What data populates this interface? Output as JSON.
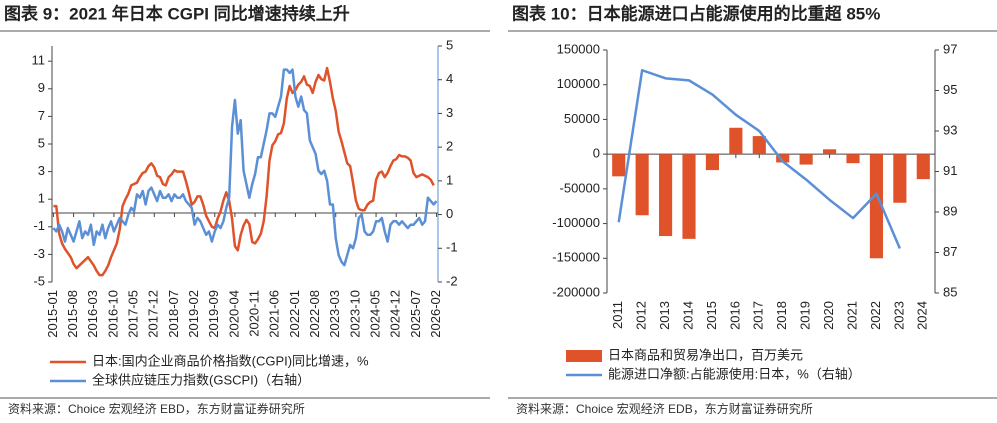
{
  "chart_data": [
    {
      "type": "line",
      "title": "图表 9：2021 年日本 CGPI 同比增速持续上升",
      "source": "资料来源：Choice 宏观经济 EBD，东方财富证券研究所",
      "categories": [
        "2015-01",
        null,
        null,
        null,
        null,
        null,
        null,
        "2015-08",
        null,
        null,
        null,
        null,
        null,
        null,
        "2016-03",
        null,
        null,
        null,
        null,
        null,
        null,
        "2016-10",
        null,
        null,
        null,
        null,
        null,
        null,
        "2017-05",
        null,
        null,
        null,
        null,
        null,
        null,
        "2017-12",
        null,
        null,
        null,
        null,
        null,
        null,
        "2018-07",
        null,
        null,
        null,
        null,
        null,
        null,
        "2019-02",
        null,
        null,
        null,
        null,
        null,
        null,
        "2019-09",
        null,
        null,
        null,
        null,
        null,
        null,
        "2020-04",
        null,
        null,
        null,
        null,
        null,
        null,
        "2020-11",
        null,
        null,
        null,
        null,
        null,
        null,
        "2021-06",
        null,
        null,
        null,
        null,
        null,
        null,
        "2022-01",
        null,
        null,
        null,
        null,
        null,
        null,
        "2022-08",
        null,
        null,
        null,
        null,
        null,
        null,
        "2023-03",
        null,
        null,
        null,
        null,
        null,
        null,
        "2023-10",
        null,
        null,
        null,
        null,
        null,
        null,
        "2024-05",
        null,
        null,
        null,
        null,
        null,
        null,
        "2024-12",
        null,
        null,
        null,
        null,
        null,
        null,
        "2025-07",
        null,
        null,
        null,
        null,
        null,
        null,
        "2026-02"
      ],
      "ylim": [
        -5,
        12.1
      ],
      "yticks": [
        -5,
        -3,
        -1,
        1,
        3,
        5,
        7,
        9,
        11
      ],
      "y2lim": [
        -2,
        5
      ],
      "y2ticks": [
        -2,
        -1,
        0,
        1,
        2,
        3,
        4,
        5
      ],
      "series": [
        {
          "name": "日本:国内企业商品价格指数(CGPI)同比增速，%",
          "color": "#e0522a",
          "values": [
            0.5,
            0.5,
            -1.5,
            -2.2,
            -2.6,
            -2.9,
            -3.2,
            -3.7,
            -4.0,
            -3.8,
            -3.6,
            -3.4,
            -3.2,
            -3.5,
            -3.8,
            -4.2,
            -4.5,
            -4.5,
            -4.2,
            -3.8,
            -3.2,
            -2.7,
            -2.2,
            -1.2,
            0.5,
            1.0,
            1.4,
            2.0,
            2.1,
            2.2,
            2.6,
            2.9,
            3.0,
            3.4,
            3.6,
            3.3,
            2.7,
            2.6,
            2.1,
            2.0,
            2.6,
            2.8,
            3.1,
            3.0,
            3.0,
            3.0,
            2.3,
            1.5,
            0.6,
            0.8,
            1.2,
            1.2,
            0.6,
            -0.2,
            -0.6,
            -1.0,
            -1.1,
            -0.4,
            0.1,
            0.9,
            1.5,
            0.9,
            -0.4,
            -2.4,
            -2.7,
            -1.6,
            -0.9,
            -0.5,
            -0.8,
            -2.1,
            -2.2,
            -1.9,
            -1.5,
            -0.6,
            1.2,
            3.8,
            4.9,
            5.2,
            5.7,
            5.8,
            6.5,
            8.3,
            9.2,
            8.7,
            8.9,
            9.3,
            9.5,
            9.9,
            9.3,
            9.2,
            8.7,
            9.5,
            10.0,
            9.7,
            9.6,
            10.5,
            9.5,
            8.3,
            7.4,
            5.9,
            5.2,
            4.4,
            3.6,
            3.4,
            2.2,
            0.9,
            0.3,
            0.2,
            0.2,
            0.6,
            0.8,
            0.9,
            2.4,
            2.9,
            3.0,
            2.6,
            2.9,
            3.4,
            3.8,
            3.9,
            4.2,
            4.1,
            4.1,
            4.0,
            3.8,
            2.9,
            2.6,
            2.7,
            2.8,
            2.7,
            2.6,
            2.4,
            2.0,
            null
          ]
        },
        {
          "name": "全球供应链压力指数(GSCPI)（右轴）",
          "color": "#5b8fd6",
          "axis": "y2",
          "values": [
            -0.4,
            -0.5,
            -0.3,
            -0.5,
            -0.8,
            -0.4,
            -0.6,
            -0.8,
            -0.5,
            -0.2,
            -0.7,
            -0.5,
            -0.6,
            -0.3,
            -0.9,
            -0.5,
            -0.6,
            -0.3,
            -0.7,
            -0.4,
            -0.2,
            -0.5,
            -0.3,
            -0.1,
            -0.2,
            -0.3,
            0.0,
            0.2,
            0.1,
            0.6,
            0.5,
            0.7,
            0.3,
            0.7,
            0.8,
            0.6,
            0.4,
            0.7,
            0.5,
            0.5,
            0.6,
            0.4,
            0.6,
            0.5,
            0.5,
            0.6,
            0.4,
            0.3,
            0.2,
            -0.3,
            -0.1,
            -0.2,
            -0.4,
            -0.6,
            -0.5,
            -0.8,
            -0.5,
            -0.3,
            -0.4,
            -0.2,
            0.2,
            0.5,
            2.6,
            3.4,
            2.4,
            2.8,
            1.3,
            0.9,
            0.5,
            0.9,
            1.2,
            1.7,
            1.7,
            2.1,
            2.5,
            3.0,
            3.0,
            2.9,
            3.2,
            3.5,
            4.3,
            4.3,
            4.2,
            4.3,
            3.5,
            3.2,
            3.5,
            3.1,
            3.0,
            2.2,
            2.0,
            1.8,
            1.3,
            1.2,
            1.3,
            1.0,
            0.3,
            0.3,
            -0.7,
            -1.2,
            -1.4,
            -1.5,
            -1.2,
            -0.9,
            -1.0,
            -0.7,
            -0.1,
            0.0,
            -0.5,
            -0.6,
            -0.6,
            -0.5,
            -0.2,
            -0.2,
            -0.1,
            -0.5,
            -0.8,
            -0.3,
            -0.2,
            -0.2,
            -0.3,
            -0.2,
            -0.3,
            -0.4,
            -0.3,
            -0.3,
            -0.2,
            -0.1,
            -0.3,
            -0.2,
            0.5,
            0.4,
            0.3,
            0.4
          ]
        }
      ]
    },
    {
      "type": "bar",
      "title": "图表 10：日本能源进口占能源使用的比重超 85%",
      "source": "资料来源：Choice 宏观经济 EDB，东方财富证券研究所",
      "categories": [
        "2011",
        "2012",
        "2013",
        "2014",
        "2015",
        "2016",
        "2017",
        "2018",
        "2019",
        "2020",
        "2021",
        "2022",
        "2023",
        "2024"
      ],
      "ylim": [
        -200000,
        150000
      ],
      "yticks": [
        -200000,
        -150000,
        -100000,
        -50000,
        0,
        50000,
        100000,
        150000
      ],
      "y2lim": [
        85,
        97
      ],
      "y2ticks": [
        85,
        87,
        89,
        91,
        93,
        95,
        97
      ],
      "series": [
        {
          "name": "日本商品和贸易净出口，百万美元",
          "color": "#e0522a",
          "type": "bar",
          "values": [
            -32000,
            -88000,
            -118000,
            -122000,
            -23000,
            38000,
            26000,
            -12000,
            -15000,
            7000,
            -13000,
            -150000,
            -70000,
            -36000
          ]
        },
        {
          "name": "能源进口净额:占能源使用:日本，%（右轴）",
          "color": "#5b8fd6",
          "type": "line",
          "axis": "y2",
          "values": [
            88.5,
            96.0,
            95.6,
            95.5,
            94.8,
            93.8,
            93.0,
            91.5,
            90.6,
            89.6,
            88.7,
            89.9,
            87.2,
            null
          ]
        }
      ]
    }
  ]
}
